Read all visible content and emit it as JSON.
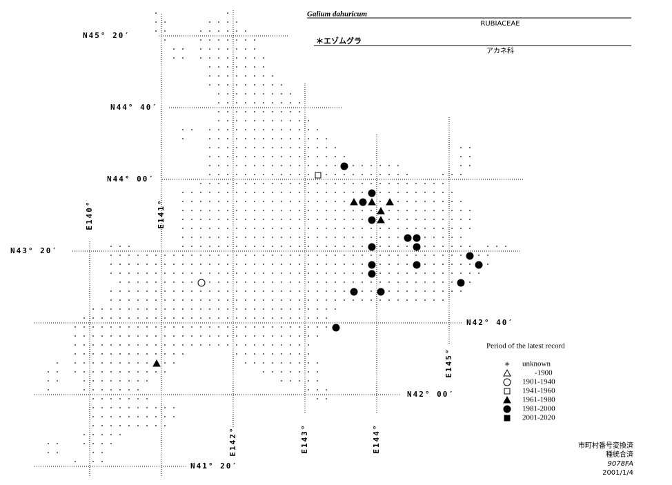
{
  "header": {
    "title": "Galium dahuricum",
    "family": "RUBIACEAE",
    "japanese_name": "＊エゾムグラ",
    "japanese_family": "アカネ科"
  },
  "latitude_labels": [
    "N45° 20′",
    "N44° 40′",
    "N44° 00′",
    "N43° 20′",
    "N42° 40′",
    "N42° 00′",
    "N41° 20′"
  ],
  "longitude_labels": [
    "E140°",
    "E141°",
    "E142°",
    "E143°",
    "E144°",
    "E145°"
  ],
  "legend": {
    "title": "Period of the latest record",
    "items": [
      "unknown",
      "-1900",
      "1901-1940",
      "1941-1960",
      "1961-1980",
      "1981-2000",
      "2001-2020"
    ]
  },
  "footer": [
    "市町村番号変換済",
    "種統合済",
    "9078FA",
    "2001/1/4"
  ]
}
